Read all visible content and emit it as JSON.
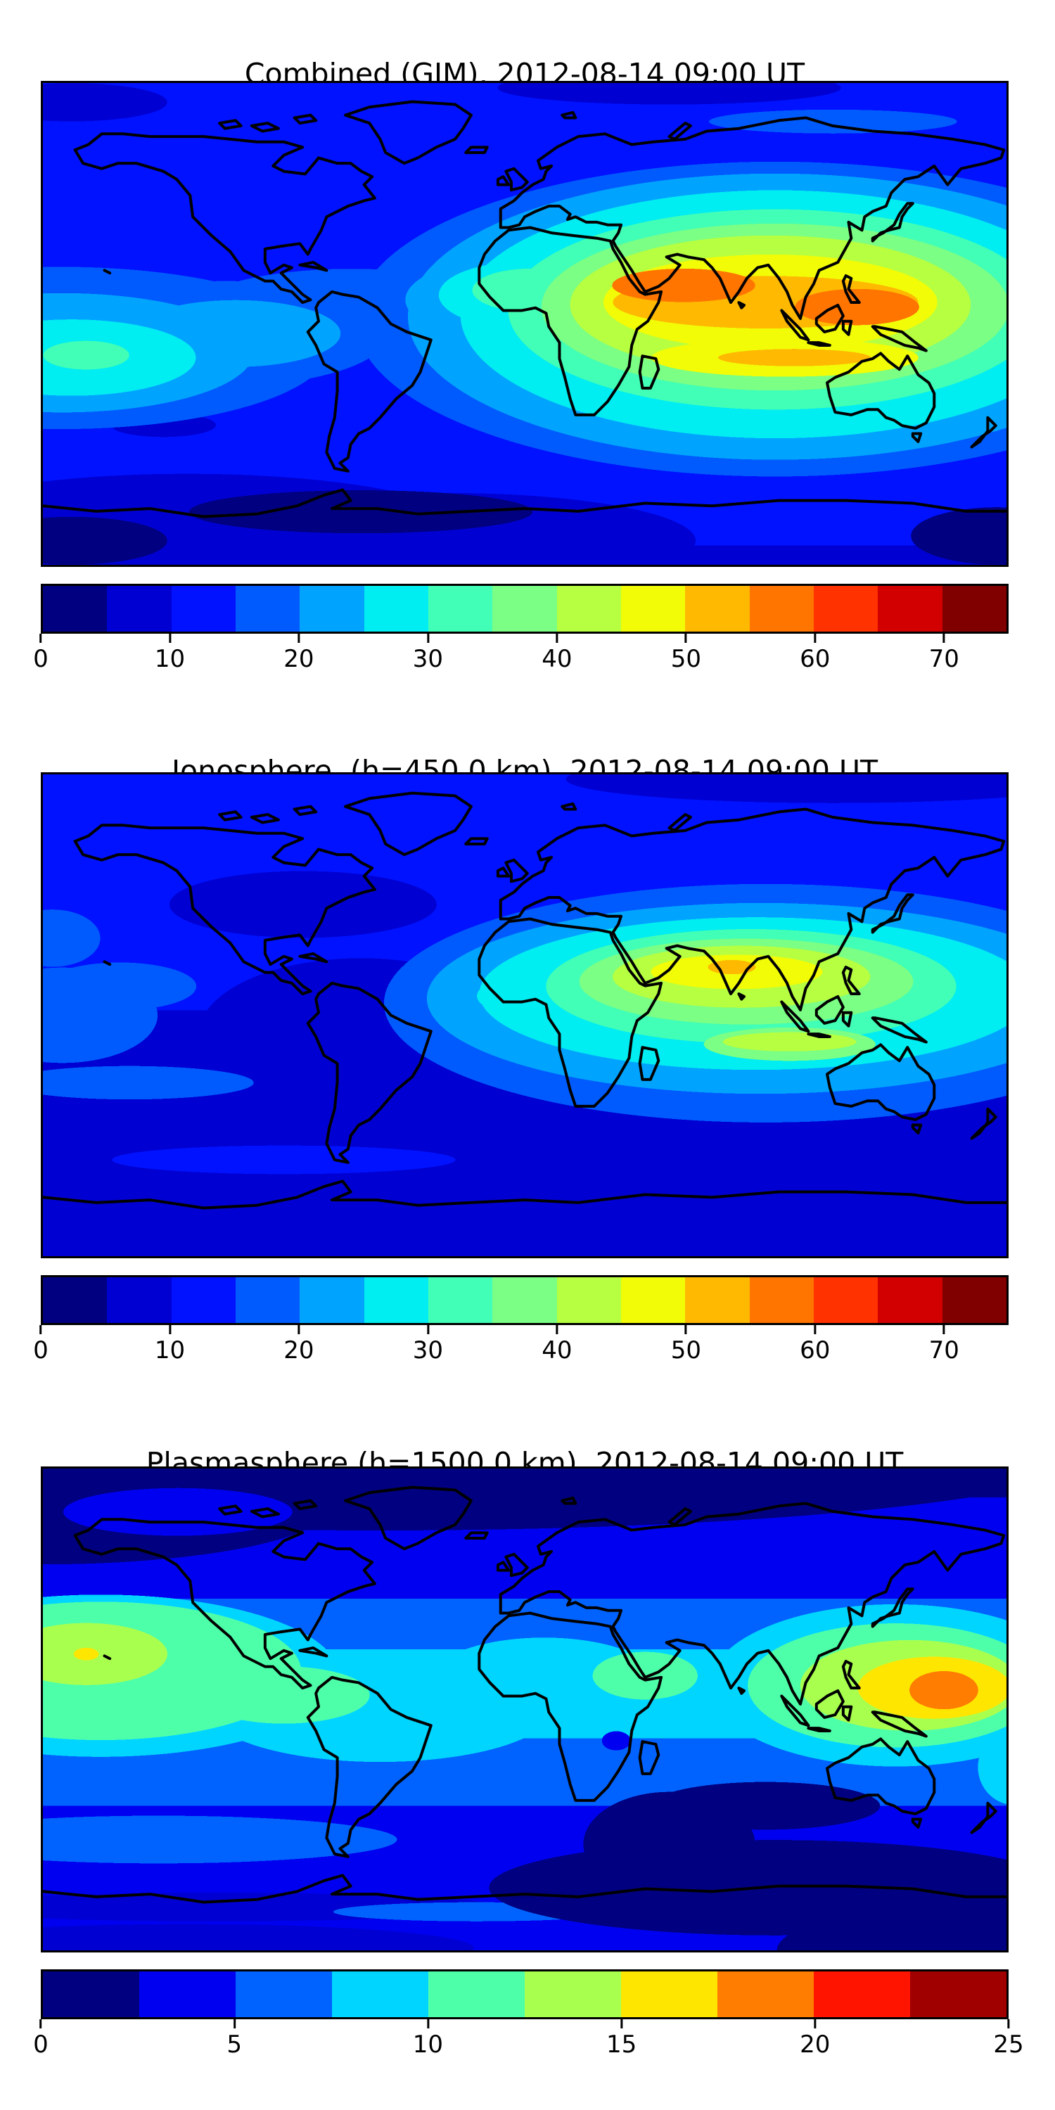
{
  "figure": {
    "background": "#ffffff",
    "frame_color": "#000000"
  },
  "panels": [
    {
      "id": "combined",
      "title": "Combined (GIM), 2012-08-14 09:00 UT",
      "colorbar": {
        "vmin": 0,
        "vmax": 75,
        "ticks": [
          0,
          10,
          20,
          30,
          40,
          50,
          60,
          70
        ],
        "band_colors": [
          "#000080",
          "#0000D2",
          "#0012FF",
          "#005BFF",
          "#00A4FF",
          "#00EDF1",
          "#41FFB6",
          "#7BFF84",
          "#B6FF41",
          "#F1FC06",
          "#FFB900",
          "#FF7500",
          "#FF3200",
          "#D20000",
          "#800000"
        ]
      }
    },
    {
      "id": "ionosphere",
      "title": "Ionosphere  (h=450.0 km), 2012-08-14 09:00 UT",
      "colorbar": {
        "vmin": 0,
        "vmax": 75,
        "ticks": [
          0,
          10,
          20,
          30,
          40,
          50,
          60,
          70
        ],
        "band_colors": [
          "#000080",
          "#0000D2",
          "#0012FF",
          "#005BFF",
          "#00A4FF",
          "#00EDF1",
          "#41FFB6",
          "#7BFF84",
          "#B6FF41",
          "#F1FC06",
          "#FFB900",
          "#FF7500",
          "#FF3200",
          "#D20000",
          "#800000"
        ]
      }
    },
    {
      "id": "plasmasphere",
      "title": "Plasmasphere (h=1500.0 km), 2012-08-14 09:00 UT",
      "colorbar": {
        "vmin": 0,
        "vmax": 25,
        "ticks": [
          0,
          5,
          10,
          15,
          20,
          25
        ],
        "band_colors": [
          "#000080",
          "#0000F0",
          "#0063FF",
          "#00D5FF",
          "#4EFFA9",
          "#A9FF4E",
          "#FFE600",
          "#FF7D00",
          "#FF1400",
          "#A00000"
        ]
      }
    }
  ],
  "chart_data": [
    {
      "type": "heatmap",
      "title": "Combined (GIM), 2012-08-14 09:00 UT",
      "projection": "equirectangular world map with coastlines",
      "x_range_lon": [
        -180,
        180
      ],
      "y_range_lat": [
        -90,
        90
      ],
      "colormap": "jet (15 discrete bands)",
      "value_range": [
        0,
        75
      ],
      "colorbar_ticks": [
        0,
        10,
        20,
        30,
        40,
        50,
        60,
        70
      ],
      "grid_lon": [
        -165,
        -135,
        -105,
        -75,
        -45,
        -15,
        15,
        45,
        75,
        105,
        135,
        165
      ],
      "grid_lat": [
        75,
        50,
        25,
        0,
        -25,
        -50,
        -75
      ],
      "values": [
        [
          10,
          10,
          10,
          10,
          12,
          12,
          12,
          12,
          10,
          8,
          8,
          10
        ],
        [
          12,
          12,
          12,
          12,
          12,
          12,
          15,
          22,
          30,
          30,
          22,
          17
        ],
        [
          14,
          12,
          12,
          12,
          12,
          17,
          30,
          50,
          62,
          57,
          62,
          37
        ],
        [
          30,
          22,
          17,
          13,
          14,
          18,
          30,
          42,
          50,
          55,
          47,
          33
        ],
        [
          32,
          25,
          15,
          12,
          12,
          14,
          20,
          27,
          35,
          40,
          33,
          27
        ],
        [
          13,
          12,
          10,
          8,
          8,
          9,
          11,
          13,
          15,
          15,
          13,
          12
        ],
        [
          5,
          4,
          4,
          3,
          4,
          6,
          7,
          7,
          7,
          6,
          5,
          4
        ]
      ],
      "features": [
        {
          "desc": "primary maximum over Arabian Sea / north India",
          "lon": 68,
          "lat": 20,
          "value": 62
        },
        {
          "desc": "secondary maximum over South China Sea / Philippines",
          "lon": 125,
          "lat": 12,
          "value": 62
        },
        {
          "desc": "southern equatorial crest over Indonesia",
          "lon": 100,
          "lat": -13,
          "value": 52
        },
        {
          "desc": "secondary blob central-east Pacific near map edge",
          "lon": -165,
          "lat": -12,
          "value": 33
        },
        {
          "desc": "minimum over southern polar ocean",
          "lon": -60,
          "lat": -68,
          "value": 3
        }
      ]
    },
    {
      "type": "heatmap",
      "title": "Ionosphere  (h=450.0 km), 2012-08-14 09:00 UT",
      "projection": "equirectangular world map with coastlines",
      "x_range_lon": [
        -180,
        180
      ],
      "y_range_lat": [
        -90,
        90
      ],
      "colormap": "jet (15 discrete bands)",
      "value_range": [
        0,
        75
      ],
      "colorbar_ticks": [
        0,
        10,
        20,
        30,
        40,
        50,
        60,
        70
      ],
      "grid_lon": [
        -165,
        -135,
        -105,
        -75,
        -45,
        -15,
        15,
        45,
        75,
        105,
        135,
        165
      ],
      "grid_lat": [
        75,
        50,
        25,
        0,
        -25,
        -50,
        -75
      ],
      "values": [
        [
          10,
          10,
          10,
          10,
          10,
          11,
          12,
          12,
          11,
          9,
          8,
          9
        ],
        [
          12,
          11,
          10,
          10,
          10,
          12,
          15,
          20,
          26,
          25,
          18,
          14
        ],
        [
          12,
          11,
          10,
          10,
          11,
          15,
          25,
          40,
          53,
          45,
          42,
          26
        ],
        [
          19,
          14,
          10,
          8,
          9,
          14,
          25,
          33,
          40,
          44,
          36,
          23
        ],
        [
          18,
          14,
          10,
          8,
          8,
          10,
          14,
          20,
          27,
          30,
          25,
          18
        ],
        [
          10,
          9,
          8,
          8,
          9,
          11,
          13,
          17,
          15,
          12,
          10,
          10
        ],
        [
          7,
          6,
          5,
          5,
          6,
          6,
          7,
          8,
          8,
          8,
          7,
          7
        ]
      ],
      "features": [
        {
          "desc": "maximum over north India",
          "lon": 83,
          "lat": 23,
          "value": 53
        },
        {
          "desc": "southern equatorial crest over Indonesia",
          "lon": 100,
          "lat": -8,
          "value": 42
        },
        {
          "desc": "cyan spot at West Africa",
          "lon": -3,
          "lat": 10,
          "value": 28
        },
        {
          "desc": "minimum over South America / South Atlantic",
          "lon": -55,
          "lat": -20,
          "value": 7
        }
      ]
    },
    {
      "type": "heatmap",
      "title": "Plasmasphere (h=1500.0 km), 2012-08-14 09:00 UT",
      "projection": "equirectangular world map with coastlines",
      "x_range_lon": [
        -180,
        180
      ],
      "y_range_lat": [
        -90,
        90
      ],
      "colormap": "jet (10 discrete bands)",
      "value_range": [
        0,
        25
      ],
      "colorbar_ticks": [
        0,
        5,
        10,
        15,
        20,
        25
      ],
      "grid_lon": [
        -165,
        -135,
        -105,
        -75,
        -45,
        -15,
        15,
        45,
        75,
        105,
        135,
        165
      ],
      "grid_lat": [
        75,
        50,
        25,
        0,
        -25,
        -50,
        -75
      ],
      "values": [
        [
          2,
          2,
          3,
          3,
          2,
          2,
          2,
          2,
          2,
          2,
          2,
          2
        ],
        [
          5,
          5,
          4,
          4,
          4,
          5,
          5,
          6,
          6,
          5,
          4,
          4
        ],
        [
          10,
          9,
          8,
          7,
          7,
          8,
          9,
          9,
          10,
          11,
          11,
          10
        ],
        [
          17,
          16,
          13,
          11,
          10,
          11,
          12,
          13,
          13,
          15,
          19,
          17
        ],
        [
          13,
          12,
          11,
          9,
          8,
          8,
          8,
          8,
          7,
          8,
          9,
          11
        ],
        [
          4,
          4,
          4,
          5,
          5,
          5,
          4,
          3,
          2,
          2,
          3,
          4
        ],
        [
          3,
          3,
          3,
          4,
          4,
          4,
          4,
          3,
          2,
          2,
          2,
          3
        ]
      ],
      "features": [
        {
          "desc": "orange maximum west Pacific near New Guinea",
          "lon": 157,
          "lat": 7,
          "value": 19
        },
        {
          "desc": "yellow-green blob central Pacific with small yellow core",
          "lon": -164,
          "lat": 21,
          "value": 16
        },
        {
          "desc": "green blob over Arabian Sea",
          "lon": 45,
          "lat": 12,
          "value": 13
        },
        {
          "desc": "wavy cyan equatorial belt",
          "lon": 0,
          "lat": 5,
          "value": 11
        },
        {
          "desc": "navy minima at high latitudes and south of Australia",
          "lon": 135,
          "lat": -45,
          "value": 2
        }
      ]
    }
  ]
}
